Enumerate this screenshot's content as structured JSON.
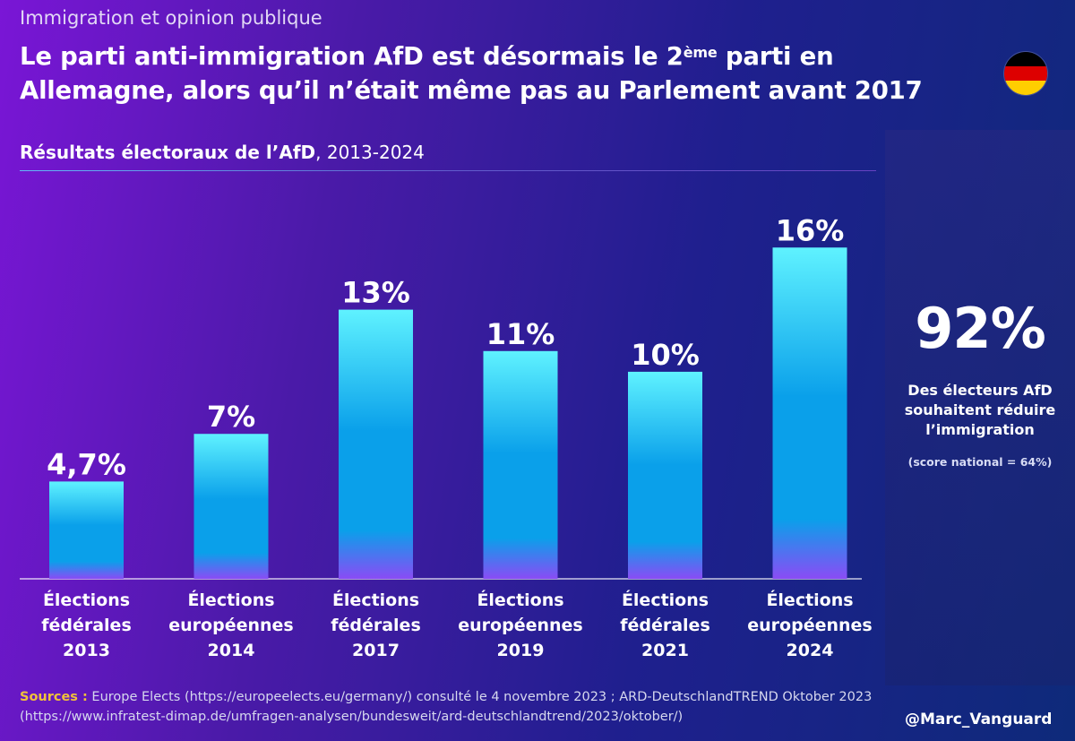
{
  "header": {
    "kicker": "Immigration et opinion publique",
    "headline_part1": "Le parti anti-immigration AfD est désormais le 2",
    "headline_sup": "ème",
    "headline_part2": " parti en Allemagne, alors qu’il n’était même pas au Parlement avant 2017"
  },
  "subtitle": {
    "bold": "Résultats électoraux de l’AfD",
    "rest": ", 2013-2024"
  },
  "side_panel": {
    "big_value": "92%",
    "text": "Des électeurs AfD souhaitent réduire l’immigration",
    "note": "(score national = 64%)"
  },
  "footer": {
    "sources_label": "Sources :",
    "sources_text": " Europe Elects (https://europeelects.eu/germany/) consulté le 4 novembre 2023 ; ARD-DeutschlandTREND Oktober 2023 (https://www.infratest-dimap.de/umfragen-analysen/bundesweit/ard-deutschlandtrend/2023/oktober/)",
    "handle": "@Marc_Vanguard"
  },
  "colors": {
    "flag_black": "#000000",
    "flag_red": "#dd0000",
    "flag_gold": "#ffce00",
    "bar_top": "#5ff2ff",
    "bar_mid": "#0aa0ea",
    "bar_bottom": "#8a4cf5",
    "sources_label": "#f0c23a"
  },
  "chart_data": {
    "type": "bar",
    "title": "Résultats électoraux de l’AfD, 2013-2024",
    "categories": [
      [
        "Élections",
        "fédérales",
        "2013"
      ],
      [
        "Élections",
        "européennes",
        "2014"
      ],
      [
        "Élections",
        "fédérales",
        "2017"
      ],
      [
        "Élections",
        "européennes",
        "2019"
      ],
      [
        "Élections",
        "fédérales",
        "2021"
      ],
      [
        "Élections",
        "européennes",
        "2024"
      ]
    ],
    "values": [
      4.7,
      7,
      13,
      11,
      10,
      16
    ],
    "value_labels": [
      "4,7%",
      "7%",
      "13%",
      "11%",
      "10%",
      "16%"
    ],
    "xlabel": "",
    "ylabel": "",
    "ylim": [
      0,
      19.3
    ],
    "grid": false,
    "legend": "none"
  }
}
